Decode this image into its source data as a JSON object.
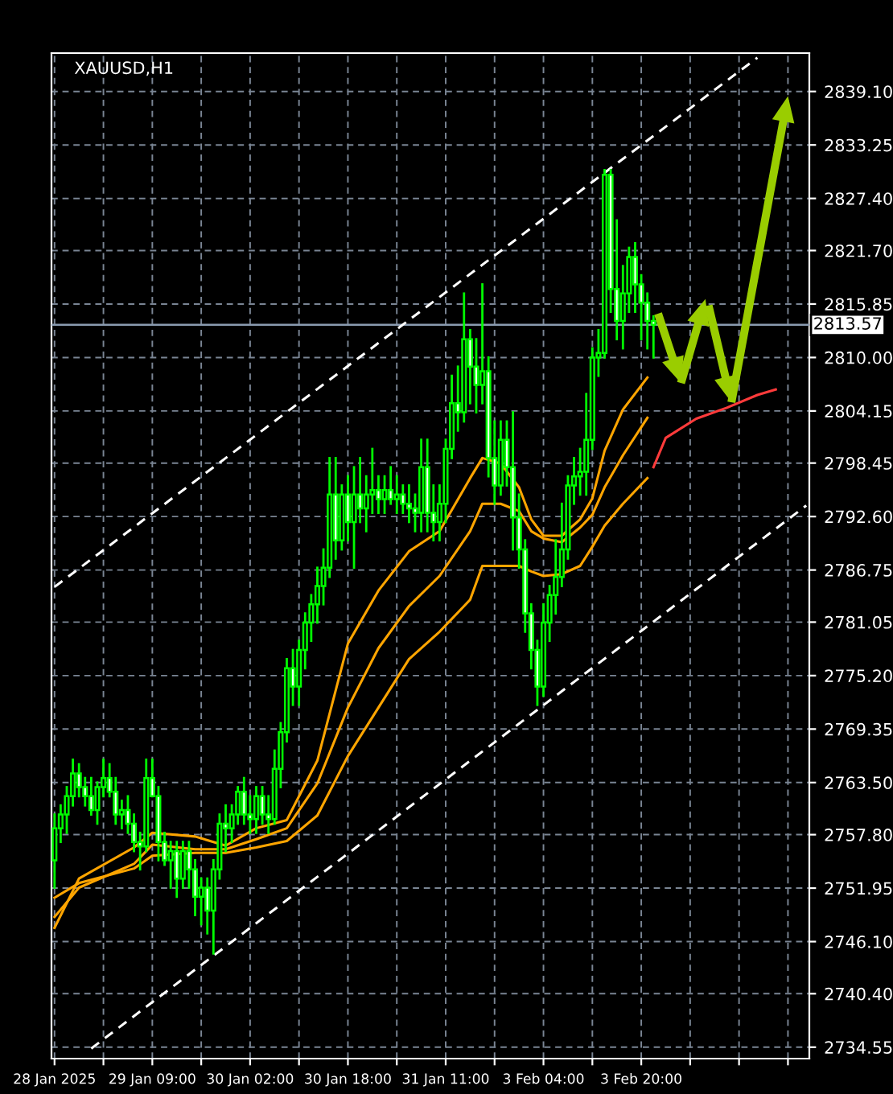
{
  "chart_data": {
    "type": "candlestick",
    "title": "XAUUSD,H1",
    "categories": [
      "28 Jan 2025",
      null,
      null,
      null,
      null,
      null,
      null,
      null,
      null,
      null,
      null,
      null,
      null,
      null,
      null,
      null,
      "29 Jan 09:00",
      null,
      null,
      null,
      null,
      null,
      null,
      null,
      null,
      null,
      null,
      null,
      null,
      null,
      null,
      null,
      "30 Jan 02:00",
      null,
      null,
      null,
      null,
      null,
      null,
      null,
      null,
      null,
      null,
      null,
      null,
      null,
      null,
      null,
      "30 Jan 18:00",
      null,
      null,
      null,
      null,
      null,
      null,
      null,
      null,
      null,
      null,
      null,
      null,
      null,
      null,
      null,
      "31 Jan 11:00",
      null,
      null,
      null,
      null,
      null,
      null,
      null,
      null,
      null,
      null,
      null,
      null,
      null,
      null,
      null,
      "3 Feb 04:00",
      null,
      null,
      null,
      null,
      null,
      null,
      null,
      null,
      null,
      null,
      null,
      null,
      null,
      null,
      null,
      "3 Feb 20:00",
      null,
      null,
      null,
      null,
      null,
      null,
      null,
      null,
      null,
      null,
      null,
      null,
      null,
      null,
      null,
      null,
      null,
      null,
      null,
      null,
      null,
      null,
      null,
      null,
      null,
      null,
      null
    ],
    "ohlc": [
      [
        2755,
        2760,
        2752,
        2758.5
      ],
      [
        2758.5,
        2761,
        2757,
        2760
      ],
      [
        2760,
        2763,
        2758,
        2762
      ],
      [
        2762,
        2766,
        2761,
        2764.5
      ],
      [
        2764.5,
        2765.5,
        2762,
        2763
      ],
      [
        2763,
        2764,
        2761,
        2762
      ],
      [
        2762,
        2764,
        2760,
        2760.5
      ],
      [
        2760.5,
        2763.5,
        2759,
        2763
      ],
      [
        2763,
        2766,
        2762,
        2764
      ],
      [
        2764,
        2765.5,
        2762,
        2762.5
      ],
      [
        2762.5,
        2764,
        2759,
        2760
      ],
      [
        2760,
        2761.5,
        2758.5,
        2760.5
      ],
      [
        2760.5,
        2762,
        2758,
        2759
      ],
      [
        2759,
        2760,
        2756,
        2757
      ],
      [
        2757,
        2758,
        2754,
        2756.5
      ],
      [
        2756.5,
        2766,
        2756,
        2764
      ],
      [
        2764,
        2766,
        2762,
        2762
      ],
      [
        2762,
        2763,
        2755,
        2757
      ],
      [
        2757,
        2758,
        2754.5,
        2755
      ],
      [
        2755,
        2757,
        2752,
        2756
      ],
      [
        2756,
        2757,
        2751,
        2753
      ],
      [
        2753,
        2757,
        2752,
        2756
      ],
      [
        2756,
        2757,
        2752,
        2754
      ],
      [
        2754,
        2755,
        2749,
        2751
      ],
      [
        2751,
        2753,
        2748,
        2752
      ],
      [
        2752,
        2753,
        2747,
        2749.5
      ],
      [
        2749.5,
        2755,
        2744.8,
        2754
      ],
      [
        2754,
        2760,
        2753,
        2759
      ],
      [
        2759,
        2761,
        2756,
        2758.5
      ],
      [
        2758.5,
        2761,
        2757,
        2760
      ],
      [
        2760,
        2763,
        2759,
        2762.5
      ],
      [
        2762.5,
        2764,
        2759,
        2760
      ],
      [
        2760,
        2762,
        2758,
        2759.5
      ],
      [
        2759.5,
        2763,
        2758,
        2762
      ],
      [
        2762,
        2763,
        2759,
        2760
      ],
      [
        2760,
        2762,
        2758,
        2759.5
      ],
      [
        2759.5,
        2767,
        2759,
        2765
      ],
      [
        2765,
        2770,
        2763,
        2769
      ],
      [
        2769,
        2777,
        2768,
        2776
      ],
      [
        2776,
        2778,
        2772,
        2774
      ],
      [
        2774,
        2779,
        2772,
        2778
      ],
      [
        2778,
        2782,
        2776,
        2781
      ],
      [
        2781,
        2784,
        2779,
        2783
      ],
      [
        2783,
        2787,
        2781,
        2785
      ],
      [
        2785,
        2789,
        2783,
        2787
      ],
      [
        2787,
        2799,
        2786,
        2795
      ],
      [
        2795,
        2799,
        2788,
        2790
      ],
      [
        2790,
        2796,
        2789,
        2795
      ],
      [
        2795,
        2797,
        2790,
        2792
      ],
      [
        2792,
        2798,
        2787,
        2795
      ],
      [
        2795,
        2799,
        2792,
        2793.5
      ],
      [
        2793.5,
        2797,
        2791,
        2795
      ],
      [
        2795,
        2800,
        2793,
        2795.5
      ],
      [
        2795.5,
        2797,
        2793,
        2794.5
      ],
      [
        2794.5,
        2797,
        2793,
        2795.5
      ],
      [
        2795.5,
        2798,
        2794,
        2794.5
      ],
      [
        2794.5,
        2797,
        2793,
        2795
      ],
      [
        2795,
        2796,
        2793,
        2794
      ],
      [
        2794,
        2796,
        2792,
        2793.5
      ],
      [
        2793.5,
        2795,
        2791,
        2793
      ],
      [
        2793,
        2801,
        2791,
        2798
      ],
      [
        2798,
        2801,
        2791,
        2793
      ],
      [
        2793,
        2796,
        2790,
        2792
      ],
      [
        2792,
        2796,
        2790,
        2794
      ],
      [
        2794,
        2801,
        2792,
        2800
      ],
      [
        2800,
        2808,
        2799,
        2805
      ],
      [
        2805,
        2809,
        2802,
        2804
      ],
      [
        2804,
        2817,
        2803,
        2812
      ],
      [
        2812,
        2813,
        2805,
        2809
      ],
      [
        2809,
        2812,
        2804,
        2807
      ],
      [
        2807,
        2818,
        2805,
        2808.5
      ],
      [
        2808.5,
        2810,
        2797,
        2799
      ],
      [
        2799,
        2803,
        2794,
        2796
      ],
      [
        2796,
        2803,
        2795,
        2801
      ],
      [
        2801,
        2803,
        2796,
        2798
      ],
      [
        2798,
        2804,
        2789,
        2792.5
      ],
      [
        2792.5,
        2795,
        2787,
        2789
      ],
      [
        2789,
        2790,
        2780,
        2782
      ],
      [
        2782,
        2783,
        2776,
        2778
      ],
      [
        2778,
        2779,
        2772,
        2774
      ],
      [
        2774,
        2783,
        2773,
        2781
      ],
      [
        2781,
        2785,
        2779,
        2784
      ],
      [
        2784,
        2790,
        2782,
        2786
      ],
      [
        2786,
        2794,
        2785,
        2789
      ],
      [
        2789,
        2797,
        2788,
        2796
      ],
      [
        2796,
        2799,
        2794,
        2797
      ],
      [
        2797,
        2800,
        2795,
        2797.5
      ],
      [
        2797.5,
        2806,
        2795,
        2801
      ],
      [
        2801,
        2811,
        2800,
        2810
      ],
      [
        2810,
        2813,
        2808,
        2810.5
      ],
      [
        2810.5,
        2830.5,
        2810,
        2830
      ],
      [
        2830,
        2830.5,
        2815,
        2817.5
      ],
      [
        2817.5,
        2825,
        2812,
        2814
      ],
      [
        2814,
        2820,
        2811,
        2817
      ],
      [
        2817,
        2822,
        2815,
        2821
      ],
      [
        2821,
        2822.5,
        2815,
        2818
      ],
      [
        2818,
        2819,
        2812,
        2816
      ],
      [
        2816,
        2817,
        2811,
        2814
      ],
      [
        2814,
        2814.5,
        2810,
        2813.57
      ],
      null,
      null,
      null,
      null,
      null,
      null,
      null,
      null,
      null,
      null,
      null,
      null,
      null,
      null,
      null,
      null,
      null,
      null,
      null,
      null,
      null,
      null,
      null,
      null,
      null
    ],
    "color": "#00ff00",
    "series": [
      {
        "type": "line",
        "color": "#ffa500",
        "line_style": "solid",
        "values": [
          2747.6,
          null,
          null,
          null,
          2753,
          null,
          null,
          null,
          null,
          null,
          null,
          null,
          null,
          2756.4,
          null,
          null,
          2758.0,
          null,
          null,
          null,
          null,
          null,
          null,
          2757.6,
          null,
          null,
          null,
          null,
          2756.6,
          null,
          null,
          null,
          null,
          2758.5,
          null,
          null,
          null,
          null,
          2759.4,
          null,
          null,
          null,
          null,
          2765.9,
          null,
          null,
          null,
          null,
          2778.7,
          null,
          null,
          null,
          null,
          2784.5,
          null,
          null,
          null,
          null,
          2788.8,
          null,
          null,
          null,
          null,
          2791.0,
          null,
          null,
          null,
          null,
          2796.8,
          null,
          2799.0,
          null,
          null,
          2798.4,
          null,
          null,
          2795.8,
          null,
          2792.3,
          null,
          2790.5,
          null,
          null,
          2790.5,
          null,
          null,
          2792.3,
          null,
          2794.6,
          null,
          2799.8,
          null,
          null,
          2804.3,
          null,
          null,
          null,
          2807.8,
          null,
          null,
          null,
          null,
          null,
          null,
          null,
          null,
          null,
          null,
          null,
          null,
          null,
          null,
          null,
          null,
          null,
          null,
          null,
          null,
          null,
          null,
          null,
          null,
          null,
          null
        ]
      },
      {
        "type": "line",
        "color": "#ffa500",
        "line_style": "solid",
        "values": [
          2748.8,
          null,
          null,
          null,
          2752,
          null,
          null,
          null,
          null,
          null,
          null,
          null,
          null,
          2754.6,
          null,
          null,
          2756.7,
          null,
          null,
          null,
          null,
          null,
          null,
          2756.2,
          null,
          null,
          null,
          null,
          2756.2,
          null,
          null,
          null,
          null,
          2757.3,
          null,
          null,
          null,
          null,
          2758.5,
          null,
          null,
          null,
          null,
          2763.4,
          null,
          null,
          null,
          null,
          2771.7,
          null,
          null,
          null,
          null,
          2778.2,
          null,
          null,
          null,
          null,
          2782.8,
          null,
          null,
          null,
          null,
          2786.1,
          null,
          null,
          null,
          null,
          2791.0,
          null,
          2794.0,
          null,
          null,
          2794.0,
          null,
          null,
          2793.2,
          null,
          2791.0,
          null,
          2790.2,
          null,
          null,
          2789.8,
          null,
          null,
          2791.4,
          null,
          2792.8,
          null,
          2795.8,
          null,
          null,
          2799.3,
          null,
          null,
          null,
          2803.4,
          null,
          null,
          null,
          null,
          null,
          null,
          null,
          null,
          null,
          null,
          null,
          null,
          null,
          null,
          null,
          null,
          null,
          null,
          null,
          null,
          null,
          null,
          null,
          null,
          null,
          null
        ]
      },
      {
        "type": "line",
        "color": "#ffa500",
        "line_style": "solid",
        "values": [
          2750.9,
          null,
          null,
          null,
          2752.5,
          null,
          null,
          null,
          null,
          null,
          null,
          null,
          null,
          2754.1,
          null,
          null,
          2755.5,
          null,
          null,
          null,
          null,
          null,
          null,
          2755.8,
          null,
          null,
          null,
          null,
          2755.8,
          null,
          null,
          null,
          null,
          2756.4,
          null,
          null,
          null,
          null,
          2757.1,
          null,
          null,
          null,
          null,
          2759.9,
          null,
          null,
          null,
          null,
          2766.4,
          null,
          null,
          null,
          null,
          2771.7,
          null,
          null,
          null,
          null,
          2777.0,
          null,
          null,
          null,
          null,
          2780.0,
          null,
          null,
          null,
          null,
          2783.5,
          null,
          2787.2,
          null,
          null,
          2787.2,
          null,
          null,
          2787.2,
          null,
          2786.6,
          null,
          2786.1,
          null,
          null,
          2786.3,
          null,
          null,
          2787.2,
          null,
          2789.3,
          null,
          2791.6,
          null,
          null,
          2794.0,
          null,
          null,
          null,
          2796.8,
          null,
          null,
          null,
          null,
          null,
          null,
          null,
          null,
          null,
          null,
          null,
          null,
          null,
          null,
          null,
          null,
          null,
          null,
          null,
          null,
          null,
          null,
          null,
          null,
          null,
          null
        ]
      },
      {
        "type": "line",
        "color": "#ffffff",
        "line_style": "dashed",
        "values": [
          2784.9,
          null,
          null,
          null,
          null,
          null,
          null,
          null,
          null,
          null,
          null,
          null,
          null,
          null,
          null,
          null,
          null,
          null,
          null,
          null,
          null,
          null,
          null,
          null,
          null,
          null,
          null,
          null,
          null,
          null,
          null,
          null,
          null,
          null,
          null,
          null,
          null,
          null,
          null,
          null,
          null,
          null,
          null,
          null,
          null,
          null,
          null,
          null,
          null,
          null,
          null,
          null,
          null,
          null,
          null,
          null,
          null,
          null,
          null,
          null,
          null,
          null,
          null,
          null,
          null,
          null,
          null,
          null,
          null,
          null,
          null,
          null,
          null,
          null,
          null,
          null,
          null,
          null,
          null,
          null,
          null,
          null,
          null,
          null,
          null,
          null,
          null,
          null,
          null,
          null,
          null,
          null,
          null,
          null,
          null,
          null,
          null,
          null,
          null,
          null,
          null,
          null,
          null,
          null,
          null,
          null,
          null,
          null,
          null,
          null,
          null,
          null,
          null,
          null,
          null,
          2842.8,
          null,
          null,
          null,
          null,
          null,
          null,
          null,
          null
        ]
      },
      {
        "type": "line",
        "color": "#ffffff",
        "line_style": "dashed",
        "values": [
          null,
          null,
          null,
          null,
          null,
          null,
          2734.4,
          null,
          null,
          null,
          null,
          null,
          null,
          null,
          null,
          null,
          null,
          null,
          null,
          null,
          null,
          null,
          null,
          null,
          null,
          null,
          null,
          null,
          null,
          null,
          null,
          null,
          null,
          null,
          null,
          null,
          null,
          null,
          null,
          null,
          null,
          null,
          null,
          null,
          null,
          null,
          null,
          null,
          null,
          null,
          null,
          null,
          null,
          null,
          null,
          null,
          null,
          null,
          null,
          null,
          null,
          null,
          null,
          null,
          null,
          null,
          null,
          null,
          null,
          null,
          null,
          null,
          null,
          null,
          null,
          null,
          null,
          null,
          null,
          null,
          null,
          null,
          null,
          null,
          null,
          null,
          null,
          null,
          null,
          null,
          null,
          null,
          null,
          null,
          null,
          null,
          null,
          null,
          null,
          null,
          null,
          null,
          null,
          null,
          null,
          null,
          null,
          null,
          null,
          null,
          null,
          null,
          null,
          null,
          null,
          null,
          null,
          null,
          null,
          null,
          null,
          null,
          null,
          2793.8
        ]
      },
      {
        "type": "line",
        "color": "#ff3b3b",
        "line_style": "solid",
        "values": [
          null,
          null,
          null,
          null,
          null,
          null,
          null,
          null,
          null,
          null,
          null,
          null,
          null,
          null,
          null,
          null,
          null,
          null,
          null,
          null,
          null,
          null,
          null,
          null,
          null,
          null,
          null,
          null,
          null,
          null,
          null,
          null,
          null,
          null,
          null,
          null,
          null,
          null,
          null,
          null,
          null,
          null,
          null,
          null,
          null,
          null,
          null,
          null,
          null,
          null,
          null,
          null,
          null,
          null,
          null,
          null,
          null,
          null,
          null,
          null,
          null,
          null,
          null,
          null,
          null,
          null,
          null,
          null,
          null,
          null,
          null,
          null,
          null,
          null,
          null,
          null,
          null,
          null,
          null,
          null,
          null,
          null,
          null,
          null,
          null,
          null,
          null,
          null,
          null,
          null,
          null,
          null,
          null,
          null,
          null,
          null,
          null,
          null,
          2798.0,
          null,
          2801.2,
          null,
          null,
          null,
          null,
          2803.3,
          null,
          null,
          null,
          null,
          2804.5,
          null,
          null,
          null,
          null,
          2805.9,
          null,
          null,
          2806.5,
          null,
          null,
          null,
          null,
          null
        ]
      }
    ],
    "ylim": [
      2733.3,
      2843.3
    ],
    "yticks": [
      {
        "value": 2734.55,
        "label": "2734.55"
      },
      {
        "value": 2740.4,
        "label": "2740.40"
      },
      {
        "value": 2746.1,
        "label": "2746.10"
      },
      {
        "value": 2751.95,
        "label": "2751.95"
      },
      {
        "value": 2757.8,
        "label": "2757.80"
      },
      {
        "value": 2763.5,
        "label": "2763.50"
      },
      {
        "value": 2769.35,
        "label": "2769.35"
      },
      {
        "value": 2775.2,
        "label": "2775.20"
      },
      {
        "value": 2781.05,
        "label": "2781.05"
      },
      {
        "value": 2786.75,
        "label": "2786.75"
      },
      {
        "value": 2792.6,
        "label": "2792.60"
      },
      {
        "value": 2798.45,
        "label": "2798.45"
      },
      {
        "value": 2804.15,
        "label": "2804.15"
      },
      {
        "value": 2810,
        "label": "2810.00"
      },
      {
        "value": 2815.85,
        "label": "2815.85"
      },
      {
        "value": 2821.7,
        "label": "2821.70"
      },
      {
        "value": 2827.4,
        "label": "2827.40"
      },
      {
        "value": 2833.25,
        "label": "2833.25"
      },
      {
        "value": 2839.1,
        "label": "2839.10"
      }
    ],
    "ref_lines": [
      {
        "axis": "y",
        "value": 2813.57,
        "label": "2813.57",
        "color": "#8a9bb0"
      }
    ],
    "grid": true,
    "legend": false,
    "marker": "none"
  }
}
